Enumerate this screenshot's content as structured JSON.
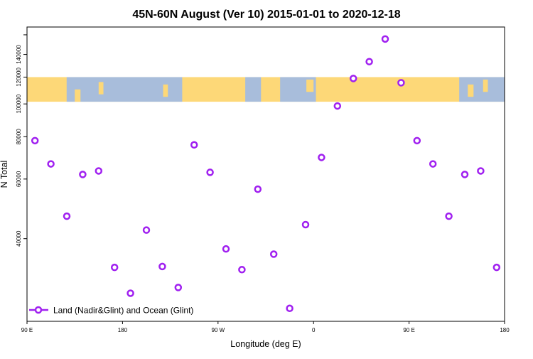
{
  "chart_data": {
    "type": "scatter",
    "title": "45N-60N August (Ver 10)   2015-01-01 to 2020-12-18",
    "xlabel": "Longitude (deg E)",
    "ylabel": "N Total",
    "yscale": "log",
    "xlim": [
      90,
      540
    ],
    "ylim": [
      22800,
      168700
    ],
    "x_ticks": [
      {
        "value": 90,
        "label": "90 E"
      },
      {
        "value": 180,
        "label": "180"
      },
      {
        "value": 270,
        "label": "90 W"
      },
      {
        "value": 360,
        "label": "0"
      },
      {
        "value": 450,
        "label": "90 E"
      },
      {
        "value": 540,
        "label": "180"
      }
    ],
    "y_ticks": [
      {
        "value": 40000,
        "label": "40000"
      },
      {
        "value": 60000,
        "label": "60000"
      },
      {
        "value": 80000,
        "label": "80000"
      },
      {
        "value": 100000,
        "label": "100000"
      },
      {
        "value": 120000,
        "label": "120000"
      },
      {
        "value": 140000,
        "label": "140000"
      },
      {
        "value": 160000,
        "label": ""
      }
    ],
    "map_band": {
      "ymin": 101500,
      "ymax": 120000,
      "land_color": "#fdd878",
      "ocean_color": "#a8bddb"
    },
    "legend": {
      "placement": "bottom-left",
      "label": "Land (Nadir&Glint) and Ocean (Glint)"
    },
    "series": [
      {
        "name": "Land (Nadir&Glint) and Ocean (Glint)",
        "color": "#a020f0",
        "x": [
          97.5,
          112.5,
          127.5,
          142.5,
          157.5,
          172.5,
          187.5,
          202.5,
          217.5,
          232.5,
          247.5,
          262.5,
          277.5,
          292.5,
          307.5,
          322.5,
          337.5,
          352.5,
          367.5,
          382.5,
          397.5,
          412.5,
          427.5,
          442.5,
          457.5,
          472.5,
          487.5,
          502.5,
          517.5,
          532.5
        ],
        "y": [
          77900,
          66500,
          46600,
          61900,
          63400,
          32900,
          27600,
          42400,
          33100,
          28700,
          75700,
          62800,
          37300,
          32400,
          56000,
          36000,
          24900,
          44000,
          69500,
          98600,
          118900,
          133300,
          155500,
          115500,
          77900,
          66500,
          46600,
          61900,
          63400,
          32900
        ]
      }
    ]
  }
}
